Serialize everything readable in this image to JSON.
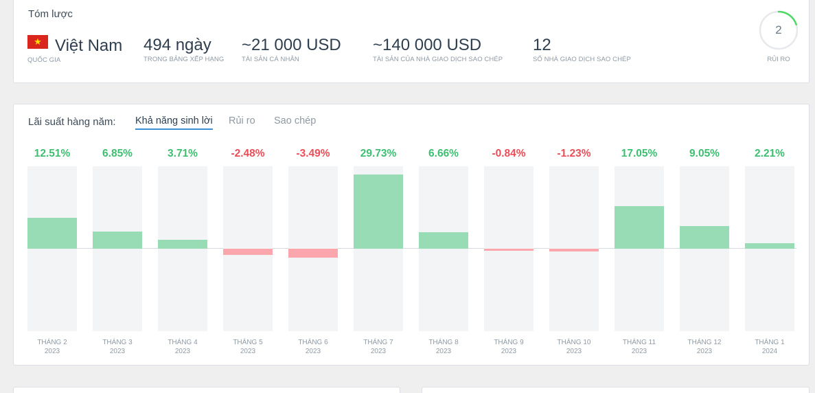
{
  "summary": {
    "title": "Tóm lược",
    "country": {
      "value": "Việt Nam",
      "label": "QUỐC GIA"
    },
    "days": {
      "value": "494 ngày",
      "label": "TRONG BẢNG XẾP HẠNG"
    },
    "personal_assets": {
      "value": "~21 000 USD",
      "label": "TÀI SẢN CÁ NHÂN"
    },
    "copier_assets": {
      "value": "~140 000 USD",
      "label": "TÀI SẢN CỦA NHÀ GIAO DỊCH SAO CHÉP"
    },
    "copiers": {
      "value": "12",
      "label": "SỐ NHÀ GIAO DỊCH SAO CHÉP"
    },
    "risk": {
      "value": "2",
      "label": "RỦI RO",
      "level": 2,
      "max": 10
    }
  },
  "returns": {
    "heading": "Lãi suất hàng năm:",
    "tabs": [
      {
        "label": "Khả năng sinh lời",
        "active": true
      },
      {
        "label": "Rủi ro",
        "active": false
      },
      {
        "label": "Sao chép",
        "active": false
      }
    ]
  },
  "colors": {
    "positive": "#3dbf72",
    "negative": "#ea4e58",
    "positive_bar": "#97dcb5",
    "negative_bar": "#fba6ad",
    "accent": "#3a8fd6"
  },
  "chart_data": {
    "type": "bar",
    "categories": [
      "THÁNG 2 2023",
      "THÁNG 3 2023",
      "THÁNG 4 2023",
      "THÁNG 5 2023",
      "THÁNG 6 2023",
      "THÁNG 7 2023",
      "THÁNG 8 2023",
      "THÁNG 9 2023",
      "THÁNG 10 2023",
      "THÁNG 11 2023",
      "THÁNG 12 2023",
      "THÁNG 1 2024"
    ],
    "months": [
      {
        "month": "THÁNG 2",
        "year": "2023",
        "value": 12.51,
        "label": "12.51%"
      },
      {
        "month": "THÁNG 3",
        "year": "2023",
        "value": 6.85,
        "label": "6.85%"
      },
      {
        "month": "THÁNG 4",
        "year": "2023",
        "value": 3.71,
        "label": "3.71%"
      },
      {
        "month": "THÁNG 5",
        "year": "2023",
        "value": -2.48,
        "label": "-2.48%"
      },
      {
        "month": "THÁNG 6",
        "year": "2023",
        "value": -3.49,
        "label": "-3.49%"
      },
      {
        "month": "THÁNG 7",
        "year": "2023",
        "value": 29.73,
        "label": "29.73%"
      },
      {
        "month": "THÁNG 8",
        "year": "2023",
        "value": 6.66,
        "label": "6.66%"
      },
      {
        "month": "THÁNG 9",
        "year": "2023",
        "value": -0.84,
        "label": "-0.84%"
      },
      {
        "month": "THÁNG 10",
        "year": "2023",
        "value": -1.23,
        "label": "-1.23%"
      },
      {
        "month": "THÁNG 11",
        "year": "2023",
        "value": 17.05,
        "label": "17.05%"
      },
      {
        "month": "THÁNG 12",
        "year": "2023",
        "value": 9.05,
        "label": "9.05%"
      },
      {
        "month": "THÁNG 1",
        "year": "2024",
        "value": 2.21,
        "label": "2.21%"
      }
    ],
    "ylim": [
      -33,
      33
    ],
    "grid": false
  }
}
